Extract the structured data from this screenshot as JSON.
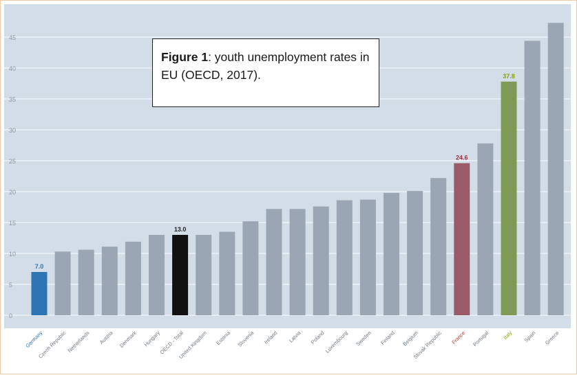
{
  "caption": {
    "bold": "Figure 1",
    "rest": ": youth unemployment rates in EU (OECD, 2017)."
  },
  "colors": {
    "plot_background": "#d3dde8",
    "grid": "#f4f7fa",
    "default_bar": "#9aa6b3",
    "germany": "#2e75b6",
    "oecd_total": "#111111",
    "france": "#9b5a68",
    "italy": "#7f9a55"
  },
  "chart_data": {
    "type": "bar",
    "title": "",
    "xlabel": "",
    "ylabel": "",
    "ylim": [
      0,
      47
    ],
    "yticks": [
      0,
      5,
      10,
      15,
      20,
      25,
      30,
      35,
      40,
      45
    ],
    "grid": true,
    "categories": [
      "Germany",
      "Czech Republic",
      "Netherlands",
      "Austria",
      "Denmark",
      "Hungary",
      "OECD - Total",
      "United Kingdom",
      "Estonia",
      "Slovenia",
      "Ireland",
      "Latvia",
      "Poland",
      "Luxembourg",
      "Sweden",
      "Finland",
      "Belgium",
      "Slovak Republic",
      "France",
      "Portugal",
      "Italy",
      "Spain",
      "Greece"
    ],
    "values": [
      7.0,
      10.3,
      10.6,
      11.1,
      11.9,
      13.0,
      13.0,
      13.0,
      13.5,
      15.2,
      17.2,
      17.2,
      17.6,
      18.6,
      18.7,
      19.8,
      20.1,
      22.2,
      24.6,
      27.8,
      37.8,
      44.4,
      47.3
    ],
    "bar_colors": [
      "#2e75b6",
      "#9aa6b3",
      "#9aa6b3",
      "#9aa6b3",
      "#9aa6b3",
      "#9aa6b3",
      "#111111",
      "#9aa6b3",
      "#9aa6b3",
      "#9aa6b3",
      "#9aa6b3",
      "#9aa6b3",
      "#9aa6b3",
      "#9aa6b3",
      "#9aa6b3",
      "#9aa6b3",
      "#9aa6b3",
      "#9aa6b3",
      "#9b5a68",
      "#9aa6b3",
      "#7f9a55",
      "#9aa6b3",
      "#9aa6b3"
    ],
    "label_colors": [
      "#2e75b6",
      "#6f7985",
      "#6f7985",
      "#6f7985",
      "#6f7985",
      "#6f7985",
      "#6f7985",
      "#6f7985",
      "#6f7985",
      "#6f7985",
      "#6f7985",
      "#6f7985",
      "#6f7985",
      "#6f7985",
      "#6f7985",
      "#6f7985",
      "#6f7985",
      "#6f7985",
      "#c0392b",
      "#6f7985",
      "#8aa000",
      "#6f7985",
      "#6f7985"
    ],
    "data_labels": [
      {
        "index": 0,
        "text": "7.0",
        "color": "#2e75b6"
      },
      {
        "index": 6,
        "text": "13.0",
        "color": "#222222"
      },
      {
        "index": 18,
        "text": "24.6",
        "color": "#9b3040"
      },
      {
        "index": 20,
        "text": "37.8",
        "color": "#8aa000"
      }
    ]
  }
}
